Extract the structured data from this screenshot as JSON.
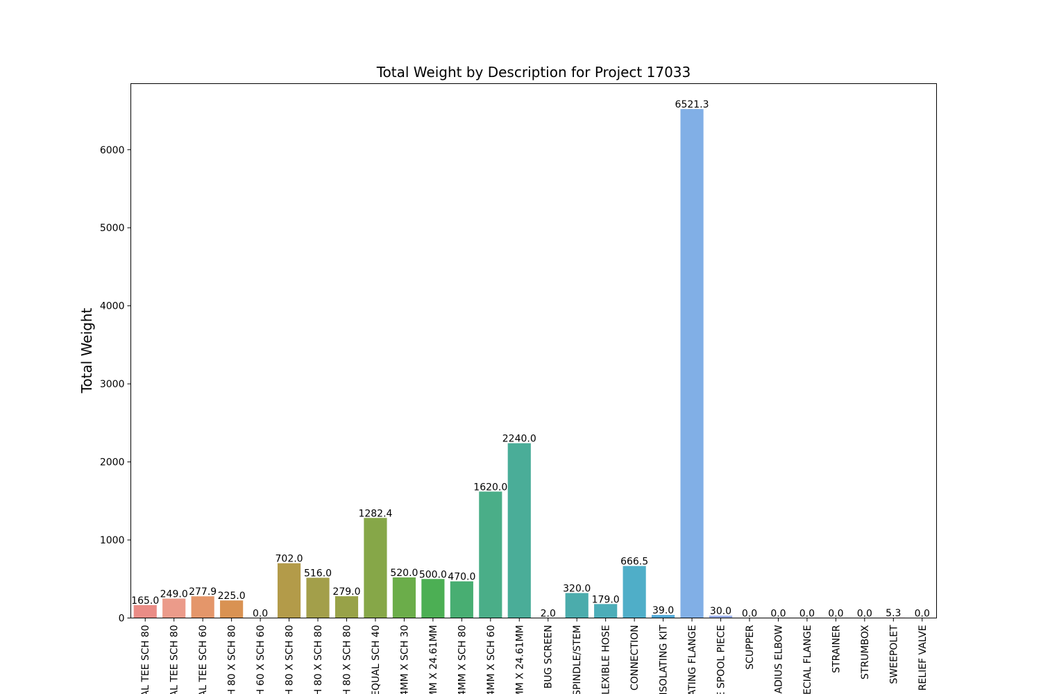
{
  "chart_data": {
    "type": "bar",
    "title": "Total Weight by Description for Project 17033",
    "xlabel": "",
    "ylabel": "Total Weight",
    "ylim": [
      0,
      6847
    ],
    "yticks": [
      0,
      1000,
      2000,
      3000,
      4000,
      5000,
      6000
    ],
    "grid": false,
    "categories": [
      "AL TEE SCH 80",
      "AL TEE SCH 80",
      "AL TEE SCH 60",
      "H 80 X SCH 80",
      "H 60 X SCH 60",
      "H 80 X SCH 80",
      "H 80 X SCH 80",
      "H 80 X SCH 80",
      "EQUAL SCH 40",
      "4MM X SCH 30",
      "MM X 24.61MM",
      "4MM X SCH 80",
      "4MM X SCH 60",
      "MM X 24.61MM",
      "BUG SCREEN",
      "SPINDLE/STEM",
      "LEXIBLE HOSE",
      "E CONNECTION",
      "ISOLATING KIT",
      "ATING FLANGE",
      "E SPOOL PIECE",
      "SCUPPER",
      "ADIUS ELBOW",
      "ECIAL FLANGE",
      "STRAINER",
      "STRUMBOX",
      "SWEEPOLET",
      "RELIEF VALVE"
    ],
    "values": [
      165.0,
      249.0,
      277.9,
      225.0,
      0.0,
      702.0,
      516.0,
      279.0,
      1282.4,
      520.0,
      500.0,
      470.0,
      1620.0,
      2240.0,
      2.0,
      320.0,
      179.0,
      666.5,
      39.0,
      6521.3,
      30.0,
      0.0,
      0.0,
      0.0,
      0.0,
      0.0,
      5.3,
      0.0
    ],
    "value_labels": [
      "165.0",
      "249.0",
      "277.9",
      "225.0",
      "0.0",
      "702.0",
      "516.0",
      "279.0",
      "1282.4",
      "520.0",
      "500.0",
      "470.0",
      "1620.0",
      "2240.0",
      "2.0",
      "320.0",
      "179.0",
      "666.5",
      "39.0",
      "6521.3",
      "30.0",
      "0.0",
      "0.0",
      "0.0",
      "0.0",
      "0.0",
      "5.3",
      "0.0"
    ],
    "colors": [
      "#ea8c86",
      "#eb9b8a",
      "#e4966a",
      "#d99252",
      "#c99d47",
      "#b39b49",
      "#a39f4a",
      "#98a248",
      "#86a748",
      "#6bad4a",
      "#4caf54",
      "#48ae72",
      "#4aae88",
      "#4aad98",
      "#4aab9f",
      "#4bacac",
      "#4cadb8",
      "#4faec8",
      "#53aad8",
      "#81afe6",
      "#9aaee8",
      "#b0a6ea",
      "#c19dea",
      "#d08fe4",
      "#e088d9",
      "#ea86c9",
      "#ec86b6",
      "#ee87a2"
    ]
  }
}
